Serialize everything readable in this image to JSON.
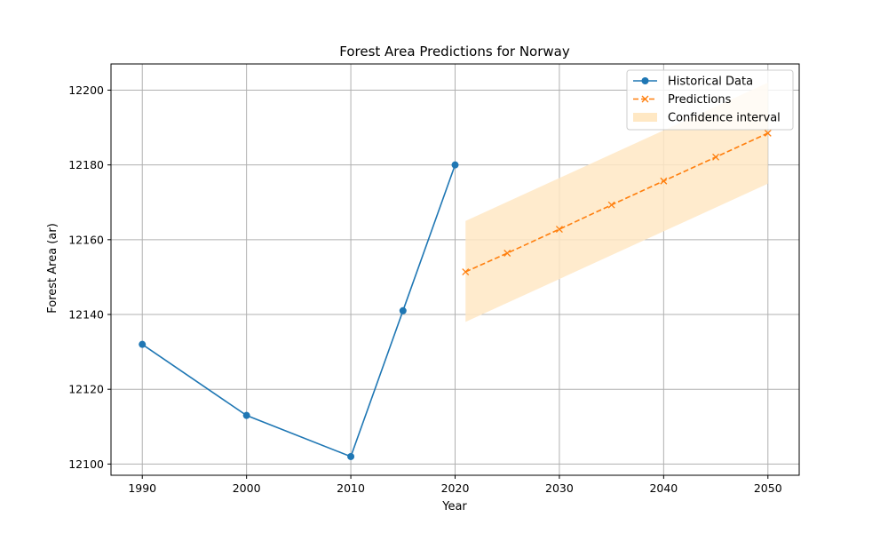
{
  "chart_data": {
    "type": "line",
    "title": "Forest Area Predictions for Norway",
    "xlabel": "Year",
    "ylabel": "Forest Area (ar)",
    "xlim": [
      1987,
      2053
    ],
    "ylim": [
      12097,
      12207
    ],
    "xticks": [
      1990,
      2000,
      2010,
      2020,
      2030,
      2040,
      2050
    ],
    "yticks": [
      12100,
      12120,
      12140,
      12160,
      12180,
      12200
    ],
    "grid": true,
    "legend_position": "top-right",
    "series": [
      {
        "name": "Historical Data",
        "kind": "line",
        "marker": "circle",
        "color": "#1f77b4",
        "x": [
          1990,
          2000,
          2010,
          2015,
          2020
        ],
        "y": [
          12132,
          12113,
          12102,
          12141,
          12180
        ]
      },
      {
        "name": "Predictions",
        "kind": "line",
        "marker": "x",
        "dashed": true,
        "color": "#ff7f0e",
        "x": [
          2021,
          2025,
          2030,
          2035,
          2040,
          2045,
          2050
        ],
        "y": [
          12151.4,
          12156.4,
          12162.8,
          12169.3,
          12175.7,
          12182.1,
          12188.5
        ]
      },
      {
        "name": "Confidence interval",
        "kind": "band",
        "color": "#ffe8c4",
        "x": [
          2021,
          2050
        ],
        "lower": [
          12138,
          12175
        ],
        "upper": [
          12165,
          12202
        ]
      }
    ]
  }
}
